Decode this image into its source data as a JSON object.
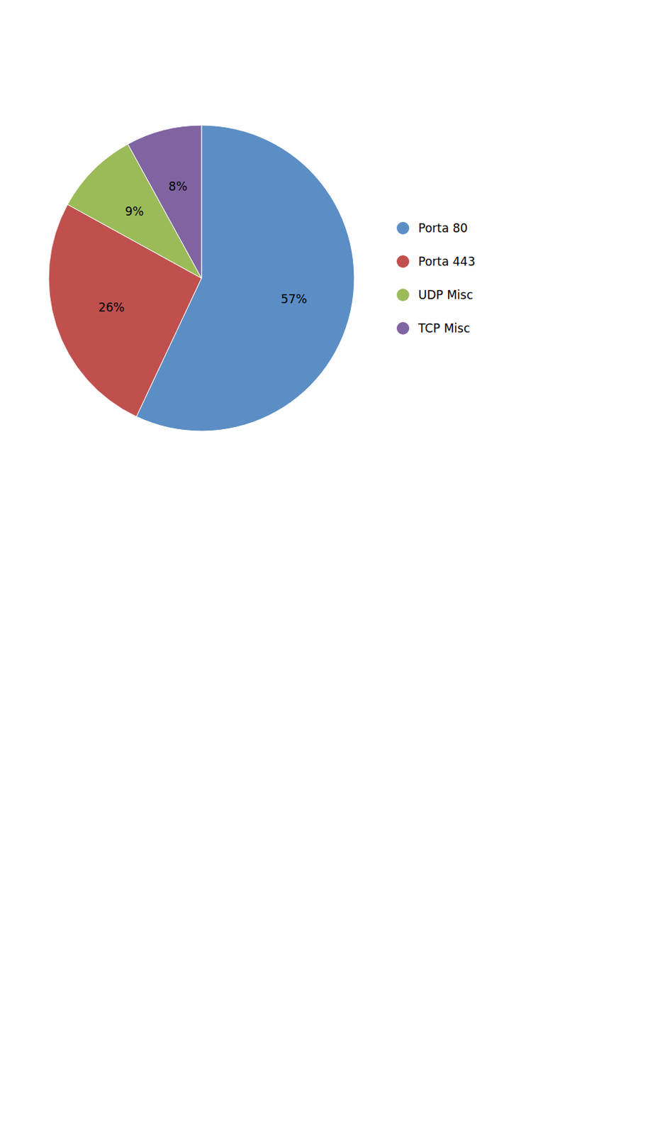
{
  "chart_data": {
    "type": "pie",
    "categories": [
      "Porta 80",
      "Porta 443",
      "UDP Misc",
      "TCP Misc"
    ],
    "values": [
      57,
      26,
      9,
      8
    ],
    "value_labels": [
      "57%",
      "26%",
      "9%",
      "8%"
    ],
    "colors": [
      "#5b8ec5",
      "#c0504d",
      "#9bbb59",
      "#8064a2"
    ],
    "data_labels": true,
    "legend": "right"
  }
}
